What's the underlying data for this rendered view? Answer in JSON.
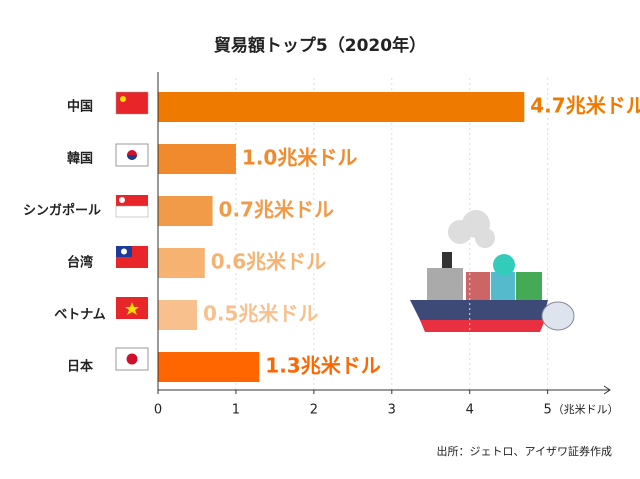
{
  "chart_data": {
    "type": "hbar",
    "title": "貿易額トップ5（2020年）",
    "categories": [
      "中国",
      "韓国",
      "シンガポール",
      "台湾",
      "ベトナム",
      "日本"
    ],
    "values": [
      4.7,
      1.0,
      0.7,
      0.6,
      0.5,
      1.3
    ],
    "value_labels": [
      "4.7兆米ドル",
      "1.0兆米ドル",
      "0.7兆米ドル",
      "0.6兆米ドル",
      "0.5兆米ドル",
      "1.3兆米ドル"
    ],
    "colors": [
      "#ee7a00",
      "#f08a2c",
      "#f19a48",
      "#f5b271",
      "#f7c08c",
      "#ff6600"
    ],
    "xlim": [
      0,
      5.8
    ],
    "xticks": [
      0,
      1,
      2,
      3,
      4,
      5
    ],
    "x_label": "（兆米ドル）",
    "grid": true,
    "source": "出所：ジェトロ、アイザワ証券作成"
  }
}
